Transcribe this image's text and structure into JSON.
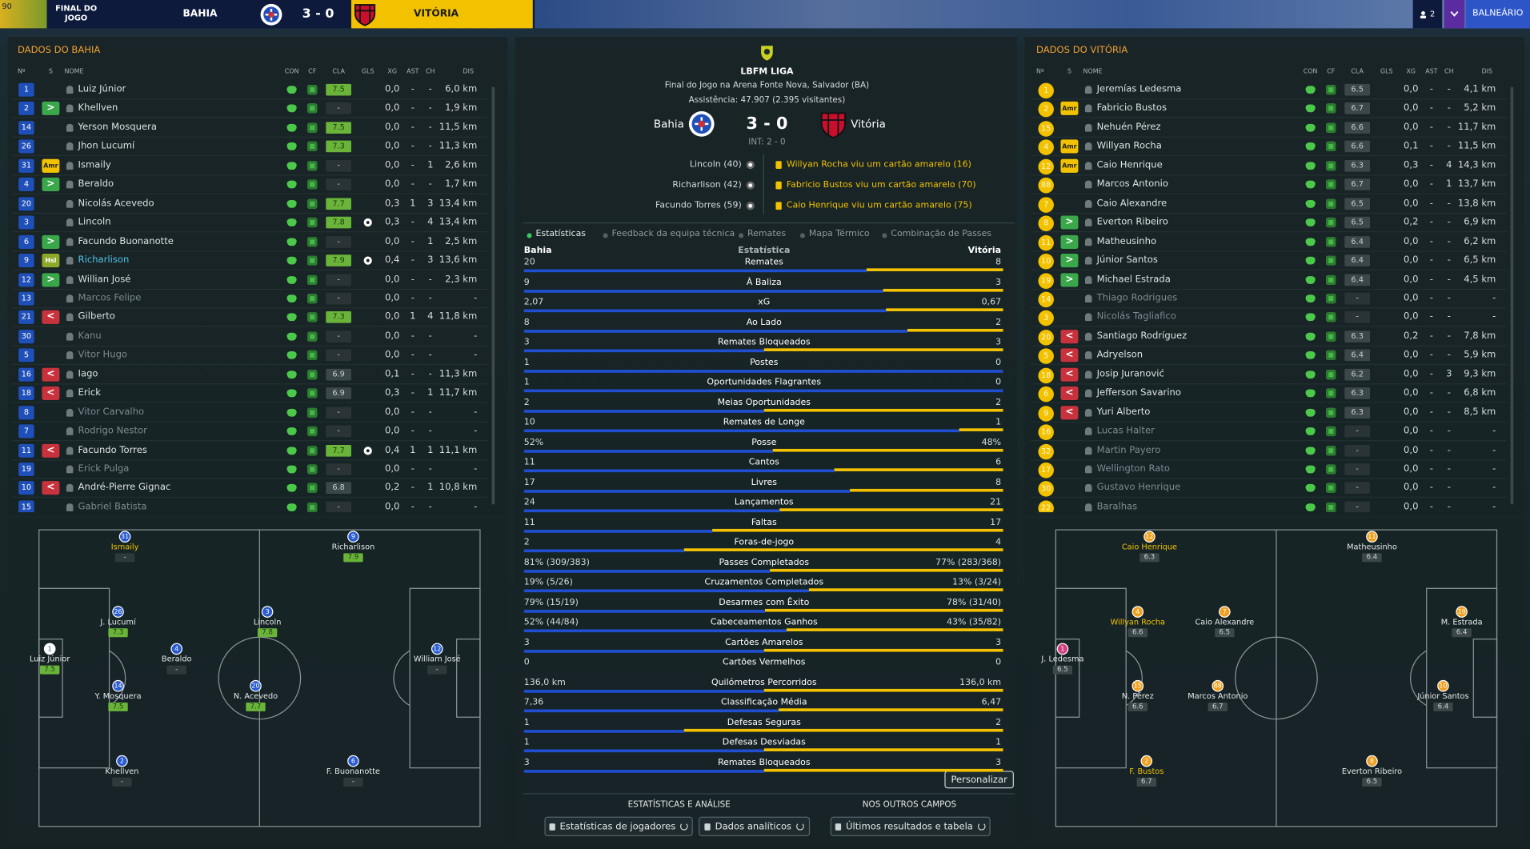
{
  "header": {
    "minute": "90",
    "status": "FINAL DO JOGO",
    "home": "BAHIA",
    "score": "3 - 0",
    "away": "VITÓRIA",
    "count": "2",
    "button": "BALNEÁRIO"
  },
  "columns": [
    "Nº",
    "S",
    "NOME",
    "CON",
    "CF",
    "CLA",
    "GLS",
    "XG",
    "AST",
    "CH",
    "DIS"
  ],
  "home_team": {
    "title": "DADOS DO BAHIA",
    "badge_color": "#1f4fb8",
    "pitch_color": "#2a5bd0",
    "rows": [
      {
        "no": "1",
        "name": "Luiz Júnior",
        "cla": "7.5",
        "xg": "0,0",
        "ast": "-",
        "ch": "-",
        "dis": "6,0 km"
      },
      {
        "no": "2",
        "s": ">",
        "name": "Khellven",
        "cla": "-",
        "xg": "0,0",
        "ast": "-",
        "ch": "-",
        "dis": "1,9 km"
      },
      {
        "no": "14",
        "name": "Yerson Mosquera",
        "cla": "7.5",
        "xg": "0,0",
        "ast": "-",
        "ch": "-",
        "dis": "11,5 km"
      },
      {
        "no": "26",
        "name": "Jhon Lucumí",
        "cla": "7.3",
        "xg": "0,0",
        "ast": "-",
        "ch": "-",
        "dis": "11,3 km"
      },
      {
        "no": "31",
        "s": "Amr",
        "name": "Ismaily",
        "cla": "-",
        "xg": "0,0",
        "ast": "-",
        "ch": "1",
        "dis": "2,6 km"
      },
      {
        "no": "4",
        "s": ">",
        "name": "Beraldo",
        "cla": "-",
        "xg": "0,0",
        "ast": "-",
        "ch": "-",
        "dis": "1,7 km"
      },
      {
        "no": "20",
        "name": "Nicolás Acevedo",
        "cla": "7.7",
        "xg": "0,3",
        "ast": "1",
        "ch": "3",
        "dis": "13,4 km"
      },
      {
        "no": "3",
        "name": "Lincoln",
        "cla": "7.8",
        "gls": 1,
        "xg": "0,3",
        "ast": "-",
        "ch": "4",
        "dis": "13,4 km"
      },
      {
        "no": "6",
        "s": ">",
        "name": "Facundo Buonanotte",
        "cla": "-",
        "xg": "0,0",
        "ast": "-",
        "ch": "1",
        "dis": "2,5 km"
      },
      {
        "no": "9",
        "s": "Hsl",
        "name": "Richarlison",
        "cla": "7.9",
        "gls": 1,
        "xg": "0,4",
        "ast": "-",
        "ch": "3",
        "dis": "13,6 km",
        "highlight": "#4fc3e8"
      },
      {
        "no": "12",
        "s": ">",
        "name": "Willian José",
        "cla": "-",
        "xg": "0,0",
        "ast": "-",
        "ch": "-",
        "dis": "2,3 km"
      },
      {
        "no": "13",
        "name": "Marcos Felipe",
        "cla": "-",
        "xg": "0,0",
        "ast": "-",
        "ch": "-",
        "dis": "-"
      },
      {
        "no": "21",
        "s": "<",
        "name": "Gilberto",
        "cla": "7.3",
        "xg": "0,0",
        "ast": "1",
        "ch": "4",
        "dis": "11,8 km"
      },
      {
        "no": "30",
        "name": "Kanu",
        "cla": "-",
        "xg": "0,0",
        "ast": "-",
        "ch": "-",
        "dis": "-"
      },
      {
        "no": "5",
        "name": "Vitor Hugo",
        "cla": "-",
        "xg": "0,0",
        "ast": "-",
        "ch": "-",
        "dis": "-"
      },
      {
        "no": "16",
        "s": "<",
        "name": "Iago",
        "cla": "6.9",
        "xg": "0,1",
        "ast": "-",
        "ch": "-",
        "dis": "11,3 km"
      },
      {
        "no": "18",
        "s": "<",
        "name": "Erick",
        "cla": "6.9",
        "xg": "0,3",
        "ast": "-",
        "ch": "1",
        "dis": "11,7 km"
      },
      {
        "no": "8",
        "name": "Vitor Carvalho",
        "cla": "-",
        "xg": "0,0",
        "ast": "-",
        "ch": "-",
        "dis": "-"
      },
      {
        "no": "7",
        "name": "Rodrigo Nestor",
        "cla": "-",
        "xg": "0,0",
        "ast": "-",
        "ch": "-",
        "dis": "-"
      },
      {
        "no": "11",
        "s": "<",
        "name": "Facundo Torres",
        "cla": "7.7",
        "gls": 1,
        "xg": "0,4",
        "ast": "1",
        "ch": "1",
        "dis": "11,1 km"
      },
      {
        "no": "19",
        "name": "Erick Pulga",
        "cla": "-",
        "xg": "0,0",
        "ast": "-",
        "ch": "-",
        "dis": "-"
      },
      {
        "no": "10",
        "s": "<",
        "name": "André-Pierre Gignac",
        "cla": "6.8",
        "xg": "0,2",
        "ast": "-",
        "ch": "1",
        "dis": "10,8 km"
      },
      {
        "no": "15",
        "name": "Gabriel Batista",
        "cla": "-",
        "xg": "0,0",
        "ast": "-",
        "ch": "-",
        "dis": "-"
      }
    ],
    "pitch": [
      {
        "no": "31",
        "name": "Ismaily",
        "rating": "-",
        "name_color": "#f2c200"
      },
      {
        "no": "9",
        "name": "Richarlison",
        "rating": "7.9"
      },
      {
        "no": "26",
        "name": "J. Lucumí",
        "rating": "7.3"
      },
      {
        "no": "3",
        "name": "Lincoln",
        "rating": "7.8"
      },
      {
        "no": "1",
        "name": "Luiz Júnior",
        "rating": "7.5"
      },
      {
        "no": "4",
        "name": "Beraldo",
        "rating": "-"
      },
      {
        "no": "12",
        "name": "William José",
        "rating": "-"
      },
      {
        "no": "14",
        "name": "Y. Mosquera",
        "rating": "7.5"
      },
      {
        "no": "20",
        "name": "N. Acevedo",
        "rating": "7.7"
      },
      {
        "no": "2",
        "name": "Khellven",
        "rating": "-"
      },
      {
        "no": "6",
        "name": "F. Buonanotte",
        "rating": "-"
      }
    ]
  },
  "away_team": {
    "title": "DADOS DO VITÓRIA",
    "badge_color": "#f2c200",
    "pitch_color": "#f0a020",
    "rows": [
      {
        "no": "1",
        "name": "Jeremías Ledesma",
        "cla": "6.5",
        "xg": "0,0",
        "ast": "-",
        "ch": "-",
        "dis": "4,1 km"
      },
      {
        "no": "2",
        "s": "Amr",
        "name": "Fabricio Bustos",
        "cla": "6.7",
        "xg": "0,0",
        "ast": "-",
        "ch": "-",
        "dis": "5,2 km"
      },
      {
        "no": "15",
        "name": "Nehuén Pérez",
        "cla": "6.6",
        "xg": "0,0",
        "ast": "-",
        "ch": "-",
        "dis": "11,7 km"
      },
      {
        "no": "4",
        "s": "Amr",
        "name": "Willyan Rocha",
        "cla": "6.6",
        "xg": "0,1",
        "ast": "-",
        "ch": "-",
        "dis": "11,5 km"
      },
      {
        "no": "12",
        "s": "Amr",
        "name": "Caio Henrique",
        "cla": "6.3",
        "xg": "0,3",
        "ast": "-",
        "ch": "4",
        "dis": "14,3 km"
      },
      {
        "no": "88",
        "name": "Marcos Antonio",
        "cla": "6.7",
        "xg": "0,0",
        "ast": "-",
        "ch": "1",
        "dis": "13,7 km"
      },
      {
        "no": "7",
        "name": "Caio Alexandre",
        "cla": "6.5",
        "xg": "0,0",
        "ast": "-",
        "ch": "-",
        "dis": "13,8 km"
      },
      {
        "no": "8",
        "s": ">",
        "name": "Everton Ribeiro",
        "cla": "6.5",
        "xg": "0,2",
        "ast": "-",
        "ch": "-",
        "dis": "6,9 km"
      },
      {
        "no": "11",
        "s": ">",
        "name": "Matheusinho",
        "cla": "6.4",
        "xg": "0,0",
        "ast": "-",
        "ch": "-",
        "dis": "6,2 km"
      },
      {
        "no": "10",
        "s": ">",
        "name": "Júnior Santos",
        "cla": "6.4",
        "xg": "0,0",
        "ast": "-",
        "ch": "-",
        "dis": "6,5 km"
      },
      {
        "no": "19",
        "s": ">",
        "name": "Michael Estrada",
        "cla": "6.4",
        "xg": "0,0",
        "ast": "-",
        "ch": "-",
        "dis": "4,5 km"
      },
      {
        "no": "14",
        "name": "Thiago Rodrigues",
        "cla": "-",
        "xg": "0,0",
        "ast": "-",
        "ch": "-",
        "dis": "-"
      },
      {
        "no": "3",
        "name": "Nicolás Tagliafico",
        "cla": "-",
        "xg": "0,0",
        "ast": "-",
        "ch": "-",
        "dis": "-"
      },
      {
        "no": "20",
        "s": "<",
        "name": "Santiago Rodríguez",
        "cla": "6.3",
        "xg": "0,2",
        "ast": "-",
        "ch": "-",
        "dis": "7,8 km"
      },
      {
        "no": "5",
        "s": "<",
        "name": "Adryelson",
        "cla": "6.4",
        "xg": "0,0",
        "ast": "-",
        "ch": "-",
        "dis": "5,9 km"
      },
      {
        "no": "18",
        "s": "<",
        "name": "Josip Juranović",
        "cla": "6.2",
        "xg": "0,0",
        "ast": "-",
        "ch": "3",
        "dis": "9,3 km"
      },
      {
        "no": "6",
        "s": "<",
        "name": "Jefferson Savarino",
        "cla": "6.3",
        "xg": "0,0",
        "ast": "-",
        "ch": "-",
        "dis": "6,8 km"
      },
      {
        "no": "9",
        "s": "<",
        "name": "Yuri Alberto",
        "cla": "6.3",
        "xg": "0,0",
        "ast": "-",
        "ch": "-",
        "dis": "8,5 km"
      },
      {
        "no": "16",
        "name": "Lucas Halter",
        "cla": "-",
        "xg": "0,0",
        "ast": "-",
        "ch": "-",
        "dis": "-"
      },
      {
        "no": "32",
        "name": "Martin Payero",
        "cla": "-",
        "xg": "0,0",
        "ast": "-",
        "ch": "-",
        "dis": "-"
      },
      {
        "no": "17",
        "name": "Wellington Rato",
        "cla": "-",
        "xg": "0,0",
        "ast": "-",
        "ch": "-",
        "dis": "-"
      },
      {
        "no": "30",
        "name": "Gustavo Henrique",
        "cla": "-",
        "xg": "0,0",
        "ast": "-",
        "ch": "-",
        "dis": "-"
      },
      {
        "no": "22",
        "name": "Baralhas",
        "cla": "-",
        "xg": "0,0",
        "ast": "-",
        "ch": "-",
        "dis": "-"
      }
    ],
    "pitch": [
      {
        "no": "12",
        "name": "Caio Henrique",
        "rating": "6.3",
        "name_color": "#f2c200"
      },
      {
        "no": "11",
        "name": "Matheusinho",
        "rating": "6.4"
      },
      {
        "no": "4",
        "name": "Willyan Rocha",
        "rating": "6.6",
        "name_color": "#f2c200"
      },
      {
        "no": "7",
        "name": "Caio Alexandre",
        "rating": "6.5"
      },
      {
        "no": "19",
        "name": "M. Estrada",
        "rating": "6.4"
      },
      {
        "no": "1",
        "name": "J. Ledesma",
        "rating": "6.5"
      },
      {
        "no": "15",
        "name": "N. Pérez",
        "rating": "6.6"
      },
      {
        "no": "88",
        "name": "Marcos Antonio",
        "rating": "6.7"
      },
      {
        "no": "10",
        "name": "Júnior Santos",
        "rating": "6.4"
      },
      {
        "no": "2",
        "name": "F. Bustos",
        "rating": "6.7",
        "name_color": "#f2c200"
      },
      {
        "no": "8",
        "name": "Everton Ribeiro",
        "rating": "6.5"
      }
    ]
  },
  "match": {
    "league": "LBFM LIGA",
    "venue": "Final do Jogo na Arena Fonte Nova, Salvador (BA)",
    "attendance": "Assistência: 47.907 (2.395 visitantes)",
    "home": "Bahia",
    "score": "3 - 0",
    "away": "Vitória",
    "half_time": "INT: 2 - 0",
    "goals": [
      "Lincoln (40)",
      "Richarlison (42)",
      "Facundo Torres (59)"
    ],
    "cards": [
      "Willyan Rocha viu um cartão amarelo (16)",
      "Fabricio Bustos viu um cartão amarelo (70)",
      "Caio Henrique viu um cartão amarelo (75)"
    ]
  },
  "tabs": [
    "Estatísticas",
    "Feedback da equipa técnica",
    "Remates",
    "Mapa Térmico",
    "Combinação de Passes"
  ],
  "stats": {
    "home_color": "#1f4fd0",
    "away_color": "#f2c200",
    "header": [
      "Bahia",
      "Estatística",
      "Vitória"
    ],
    "rows": [
      {
        "name": "Remates",
        "home": 20,
        "away": 8
      },
      {
        "name": "À Baliza",
        "home": 9,
        "away": 3
      },
      {
        "name": "xG",
        "home": 2.07,
        "away": 0.67,
        "home_label": "2,07",
        "away_label": "0,67"
      },
      {
        "name": "Ao Lado",
        "home": 8,
        "away": 2
      },
      {
        "name": "Remates Bloqueados",
        "home": 3,
        "away": 3
      },
      {
        "name": "Postes",
        "home": 1,
        "away": 0
      },
      {
        "name": "Oportunidades Flagrantes",
        "home": 1,
        "away": 0
      },
      {
        "name": "Meias Oportunidades",
        "home": 2,
        "away": 2
      },
      {
        "name": "Remates de Longe",
        "home": 10,
        "away": 1
      },
      {
        "name": "Posse",
        "home": 52,
        "away": 48,
        "home_label": "52%",
        "away_label": "48%"
      },
      {
        "name": "Cantos",
        "home": 11,
        "away": 6
      },
      {
        "name": "Livres",
        "home": 17,
        "away": 8
      },
      {
        "name": "Lançamentos",
        "home": 24,
        "away": 21
      },
      {
        "name": "Faltas",
        "home": 11,
        "away": 17
      },
      {
        "name": "Foras-de-jogo",
        "home": 2,
        "away": 4
      },
      {
        "name": "Passes Completados",
        "home": 81,
        "away": 77,
        "home_label": "81% (309/383)",
        "away_label": "77% (283/368)"
      },
      {
        "name": "Cruzamentos Completados",
        "home": 19,
        "away": 13,
        "home_label": "19% (5/26)",
        "away_label": "13% (3/24)"
      },
      {
        "name": "Desarmes com Êxito",
        "home": 79,
        "away": 78,
        "home_label": "79% (15/19)",
        "away_label": "78% (31/40)"
      },
      {
        "name": "Cabeceamentos Ganhos",
        "home": 52,
        "away": 43,
        "home_label": "52% (44/84)",
        "away_label": "43% (35/82)"
      },
      {
        "name": "Cartões Amarelos",
        "home": 3,
        "away": 3
      },
      {
        "name": "Cartões Vermelhos",
        "home": 0,
        "away": 0
      },
      {
        "name": "Quilómetros Percorridos",
        "home": 136.0,
        "away": 136.0,
        "home_label": "136,0 km",
        "away_label": "136,0 km"
      },
      {
        "name": "Classificação Média",
        "home": 7.36,
        "away": 6.47,
        "home_label": "7,36",
        "away_label": "6,47"
      },
      {
        "name": "Defesas Seguras",
        "home": 1,
        "away": 2
      },
      {
        "name": "Defesas Desviadas",
        "home": 1,
        "away": 1
      },
      {
        "name": "Remates Bloqueados",
        "home": 3,
        "away": 3
      }
    ],
    "button": "Personalizar"
  },
  "footer": {
    "left_heading": "ESTATÍSTICAS E ANÁLISE",
    "right_heading": "NOS OUTROS CAMPOS",
    "buttons": [
      "Estatísticas de jogadores",
      "Dados analíticos",
      "Últimos resultados e tabela"
    ]
  }
}
